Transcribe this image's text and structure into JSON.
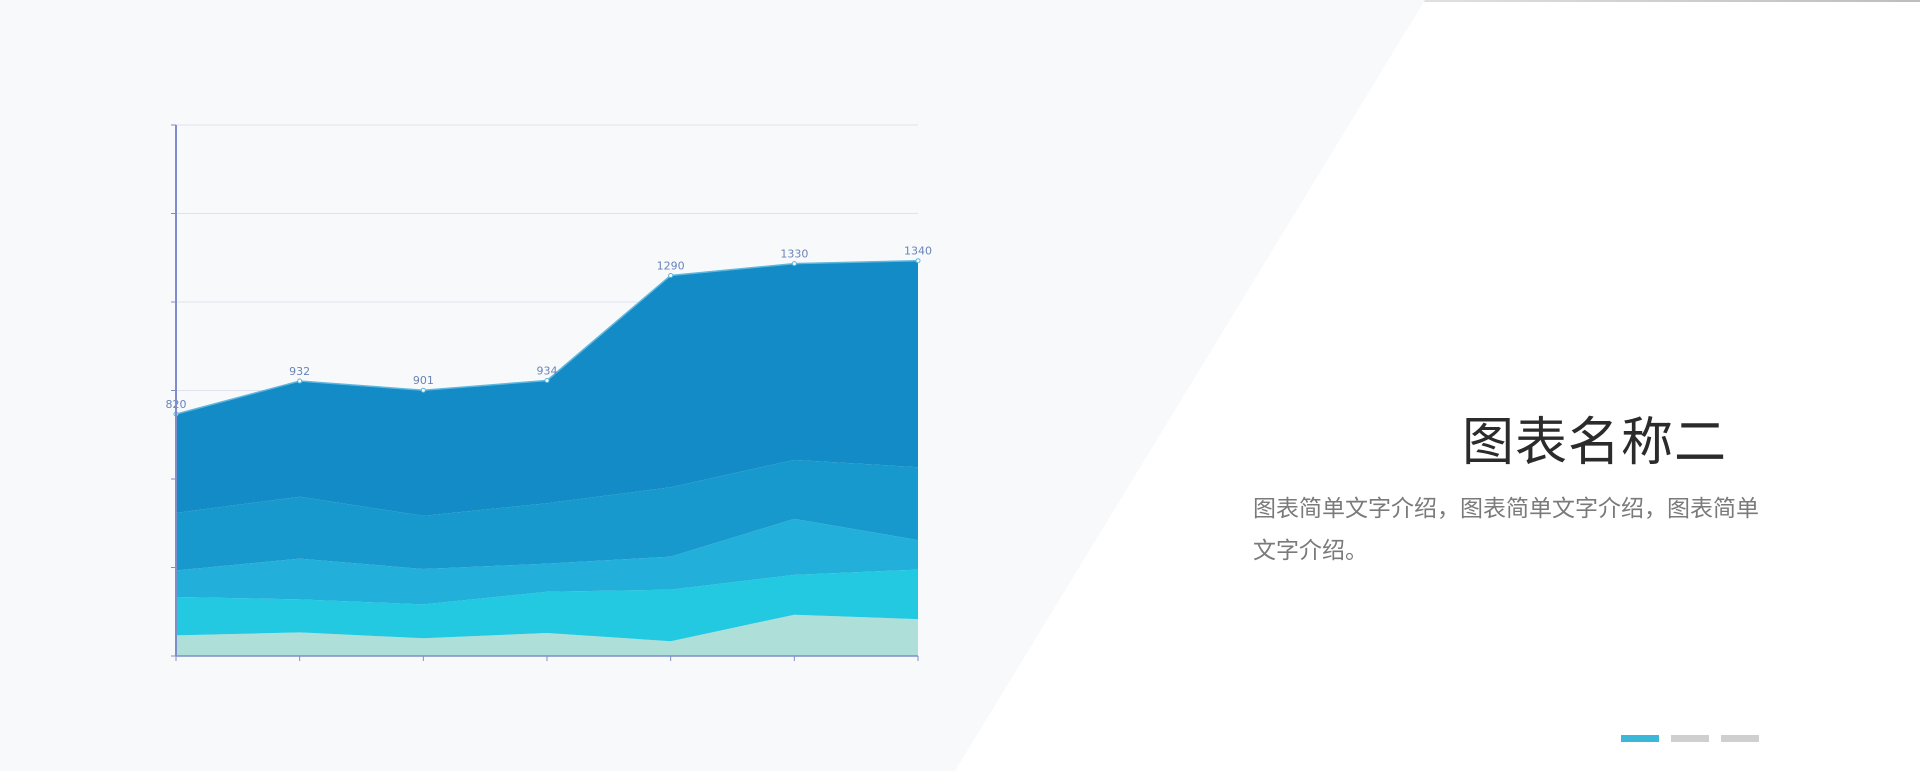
{
  "colors": {
    "background_panel": "#f8f9fb",
    "axis": "#7f8ec8",
    "grid": "#dfe3ee",
    "layer_top": "#128bc6",
    "layer_2": "#1899cd",
    "layer_3": "#22b0da",
    "layer_4": "#22c9e0",
    "layer_bottom": "#aee0d9",
    "dot_active": "#3bb8d8",
    "dot_inactive": "#cfcfcf"
  },
  "slide": {
    "title": "图表名称二",
    "description": "图表简单文字介绍，图表简单文字介绍，图表简单文字介绍。"
  },
  "pager": {
    "count": 3,
    "active_index": 0
  },
  "chart_data": {
    "type": "area",
    "stacked": true,
    "x": [
      1,
      2,
      3,
      4,
      5,
      6,
      7
    ],
    "ylim": [
      0,
      1800
    ],
    "grid": true,
    "data_labels": [
      "820",
      "932",
      "901",
      "934",
      "1290",
      "1330",
      "1340"
    ],
    "series": [
      {
        "values": [
          70,
          80,
          60,
          78,
          50,
          140,
          125
        ]
      },
      {
        "values": [
          130,
          112,
          115,
          140,
          175,
          135,
          168
        ]
      },
      {
        "values": [
          90,
          138,
          120,
          95,
          112,
          190,
          100
        ]
      },
      {
        "values": [
          195,
          210,
          180,
          205,
          235,
          200,
          247
        ]
      },
      {
        "values": [
          335,
          392,
          426,
          416,
          718,
          665,
          700
        ]
      }
    ]
  }
}
